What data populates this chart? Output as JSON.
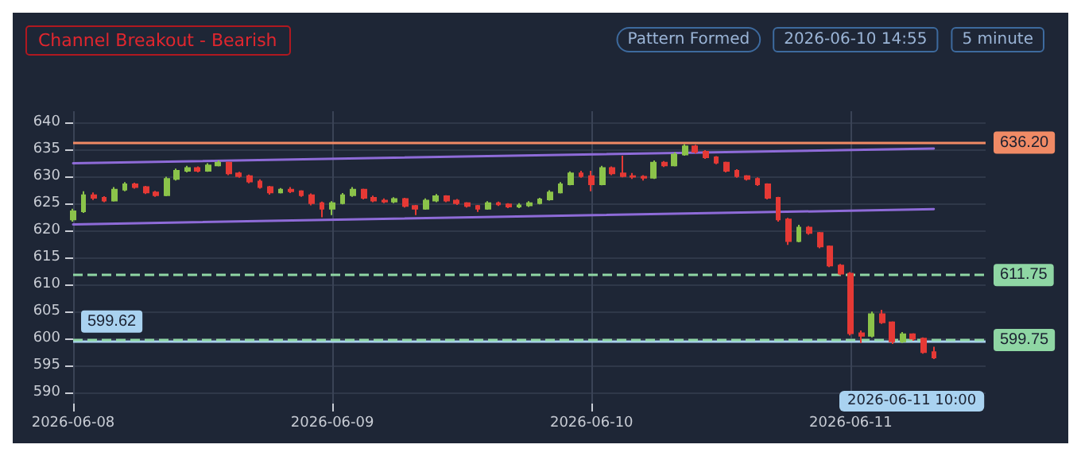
{
  "chart_data": {
    "type": "candlestick",
    "title": "Channel Breakout - Bearish",
    "annotations": [
      "Pattern Formed",
      "2026-06-10 14:55",
      "5 minute",
      "2026-06-11 10:00"
    ],
    "categories": [
      "2026-06-08",
      null,
      null,
      null,
      null,
      null,
      null,
      null,
      null,
      null,
      null,
      null,
      null,
      null,
      null,
      null,
      null,
      null,
      null,
      null,
      null,
      null,
      null,
      null,
      null,
      "2026-06-09",
      null,
      null,
      null,
      null,
      null,
      null,
      null,
      null,
      null,
      null,
      null,
      null,
      null,
      null,
      null,
      null,
      null,
      null,
      null,
      null,
      null,
      null,
      null,
      null,
      "2026-06-10",
      null,
      null,
      null,
      null,
      null,
      null,
      null,
      null,
      null,
      null,
      null,
      null,
      null,
      null,
      null,
      null,
      null,
      null,
      null,
      null,
      null,
      null,
      null,
      null,
      "2026-06-11",
      null,
      null,
      null,
      null,
      null,
      null,
      null,
      null
    ],
    "ohlc": [
      [
        622,
        624,
        621.6,
        623.5
      ],
      [
        623.5,
        627.2,
        623.2,
        626.5
      ],
      [
        626.5,
        627,
        625.6,
        626
      ],
      [
        626,
        626.3,
        625.2,
        625.5
      ],
      [
        625.5,
        628,
        625.3,
        627.5
      ],
      [
        627.5,
        628.9,
        627.2,
        628.5
      ],
      [
        628.5,
        628.8,
        627.7,
        628
      ],
      [
        628,
        628.2,
        626.7,
        627
      ],
      [
        627,
        627.3,
        626.2,
        626.5
      ],
      [
        626.5,
        629.9,
        626.3,
        629.5
      ],
      [
        629.5,
        631.4,
        629.2,
        631
      ],
      [
        631,
        631.9,
        630.7,
        631.5
      ],
      [
        631.5,
        631.8,
        630.7,
        631
      ],
      [
        631,
        632.4,
        630.8,
        632
      ],
      [
        632,
        632.9,
        631.8,
        632.5
      ],
      [
        632.5,
        632.7,
        630.2,
        630.5
      ],
      [
        630.5,
        630.8,
        629.7,
        630
      ],
      [
        630,
        630.3,
        628.7,
        629
      ],
      [
        629,
        629.4,
        627.7,
        628
      ],
      [
        628,
        628.2,
        626.6,
        627
      ],
      [
        627,
        627.8,
        626.8,
        627.5
      ],
      [
        627.5,
        628,
        626.9,
        627.2
      ],
      [
        627.2,
        627.4,
        626.2,
        626.5
      ],
      [
        626.5,
        626.8,
        624.6,
        625
      ],
      [
        625,
        625.3,
        622.4,
        624
      ],
      [
        624,
        625.4,
        622.8,
        625
      ],
      [
        625,
        626.9,
        624.8,
        626.5
      ],
      [
        626.5,
        628,
        626.2,
        627.5
      ],
      [
        627.5,
        627.7,
        625.7,
        626
      ],
      [
        626,
        626.4,
        625.2,
        625.5
      ],
      [
        625.5,
        625.9,
        625,
        625.3
      ],
      [
        625.3,
        626.1,
        625,
        625.8
      ],
      [
        625.8,
        626,
        624.2,
        624.5
      ],
      [
        624.5,
        624.7,
        622.8,
        624
      ],
      [
        624,
        625.9,
        623.8,
        625.5
      ],
      [
        625.5,
        626.7,
        625.2,
        626.3
      ],
      [
        626.3,
        626.5,
        625.2,
        625.5
      ],
      [
        625.5,
        625.8,
        624.7,
        625
      ],
      [
        625,
        625.2,
        624.2,
        624.5
      ],
      [
        624.5,
        624.7,
        623.4,
        624
      ],
      [
        624,
        625.4,
        623.8,
        625
      ],
      [
        625,
        625.3,
        624.5,
        624.8
      ],
      [
        624.8,
        625,
        624.1,
        624.4
      ],
      [
        624.4,
        625,
        624.1,
        624.6
      ],
      [
        624.6,
        625.4,
        624.3,
        625
      ],
      [
        625,
        626,
        624.8,
        625.7
      ],
      [
        625.7,
        627.4,
        625.5,
        627
      ],
      [
        627,
        628.9,
        626.8,
        628.5
      ],
      [
        628.5,
        630.9,
        628.3,
        630.5
      ],
      [
        630.5,
        631,
        629.7,
        630
      ],
      [
        630,
        631,
        627.2,
        628.5
      ],
      [
        628.5,
        631.9,
        628.3,
        631.5
      ],
      [
        631.5,
        631.8,
        630.2,
        630.5
      ],
      [
        630.5,
        633.8,
        629.8,
        630
      ],
      [
        630,
        630.6,
        629.5,
        629.9
      ],
      [
        629.9,
        630.2,
        629.2,
        629.7
      ],
      [
        629.7,
        632.9,
        629.5,
        632.5
      ],
      [
        632.5,
        632.8,
        631.7,
        632
      ],
      [
        632,
        634.4,
        631.8,
        634
      ],
      [
        634,
        635.9,
        633.8,
        635.5
      ],
      [
        635.5,
        635.8,
        634.2,
        634.5
      ],
      [
        634.5,
        634.8,
        633.2,
        633.5
      ],
      [
        633.5,
        633.7,
        632.2,
        632.5
      ],
      [
        632.5,
        632.7,
        630.7,
        631
      ],
      [
        631,
        631.3,
        629.7,
        630
      ],
      [
        630,
        630.2,
        629.2,
        629.5
      ],
      [
        629.5,
        629.8,
        628.2,
        628.5
      ],
      [
        628.5,
        628.7,
        625.7,
        626
      ],
      [
        626,
        626.2,
        621.6,
        622
      ],
      [
        622,
        622.3,
        617.3,
        618
      ],
      [
        618,
        621,
        617.8,
        620.5
      ],
      [
        620.5,
        620.8,
        619.2,
        619.5
      ],
      [
        619.5,
        619.7,
        616.7,
        617
      ],
      [
        617,
        617.2,
        613.2,
        613.5
      ],
      [
        613.5,
        613.8,
        611.7,
        612
      ],
      [
        612,
        612.3,
        600.6,
        601
      ],
      [
        601,
        601.5,
        599.2,
        600.5
      ],
      [
        600.5,
        605,
        600.2,
        604.5
      ],
      [
        604.5,
        605.3,
        602.7,
        603
      ],
      [
        603,
        603.2,
        599,
        599.5
      ],
      [
        599.5,
        601.2,
        599.2,
        600.8
      ],
      [
        600.8,
        601,
        599.6,
        600
      ],
      [
        600,
        600.2,
        597.2,
        597.5
      ],
      [
        597.5,
        598.5,
        596.2,
        596.5
      ]
    ],
    "series": [
      {
        "type": "line",
        "color": "#8e6bd8",
        "values": [
          632.4,
          null,
          null,
          null,
          null,
          null,
          null,
          null,
          null,
          null,
          null,
          null,
          null,
          null,
          null,
          null,
          null,
          null,
          null,
          null,
          null,
          null,
          null,
          null,
          null,
          null,
          null,
          null,
          null,
          null,
          null,
          null,
          null,
          null,
          null,
          null,
          null,
          null,
          null,
          null,
          null,
          null,
          null,
          null,
          null,
          null,
          null,
          null,
          null,
          null,
          null,
          null,
          null,
          null,
          null,
          null,
          null,
          null,
          null,
          null,
          null,
          null,
          null,
          null,
          null,
          null,
          null,
          null,
          null,
          null,
          null,
          null,
          null,
          null,
          null,
          null,
          null,
          null,
          null,
          null,
          null,
          null,
          null,
          635.1
        ]
      },
      {
        "type": "line",
        "color": "#8e6bd8",
        "values": [
          621.1,
          null,
          null,
          null,
          null,
          null,
          null,
          null,
          null,
          null,
          null,
          null,
          null,
          null,
          null,
          null,
          null,
          null,
          null,
          null,
          null,
          null,
          null,
          null,
          null,
          null,
          null,
          null,
          null,
          null,
          null,
          null,
          null,
          null,
          null,
          null,
          null,
          null,
          null,
          null,
          null,
          null,
          null,
          null,
          null,
          null,
          null,
          null,
          null,
          null,
          null,
          null,
          null,
          null,
          null,
          null,
          null,
          null,
          null,
          null,
          null,
          null,
          null,
          null,
          null,
          null,
          null,
          null,
          null,
          null,
          null,
          null,
          null,
          null,
          null,
          null,
          null,
          null,
          null,
          null,
          null,
          null,
          null,
          623.9
        ]
      }
    ],
    "ref_lines": [
      {
        "axis": "y",
        "value": 599.62,
        "label": "599.62",
        "color": "#a9d2f0"
      },
      {
        "axis": "y",
        "value": 636.2,
        "label": "636.20",
        "color": "#f08a65",
        "line_style": "solid"
      },
      {
        "axis": "y",
        "value": 611.75,
        "label": "611.75",
        "color": "#8fd6a4",
        "line_style": "dashed"
      },
      {
        "axis": "y",
        "value": 599.75,
        "label": "599.75",
        "color": "#8fd6a4",
        "line_style": "dashed"
      }
    ],
    "ylim": [
      588,
      642
    ],
    "yticks": [
      590,
      595,
      600,
      605,
      610,
      615,
      620,
      625,
      630,
      635,
      640
    ],
    "grid": true
  }
}
